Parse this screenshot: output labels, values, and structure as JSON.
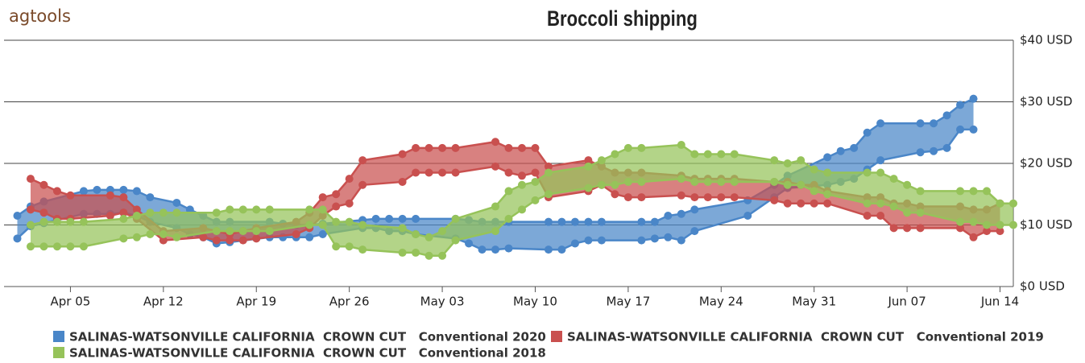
{
  "brand": "agtools",
  "chart_data": {
    "type": "arearange",
    "title": "Broccoli shipping",
    "xlim": [
      "Mar 31",
      "Jun 15"
    ],
    "xticks": [
      "Apr 05",
      "Apr 12",
      "Apr 19",
      "Apr 26",
      "May 03",
      "May 10",
      "May 17",
      "May 24",
      "May 31",
      "Jun 07",
      "Jun 14"
    ],
    "ylim": [
      0,
      40
    ],
    "yticks": [
      {
        "value": 0,
        "label": "$0 USD"
      },
      {
        "value": 10,
        "label": "$10 USD"
      },
      {
        "value": 20,
        "label": "$20 USD"
      },
      {
        "value": 30,
        "label": "$30 USD"
      },
      {
        "value": 40,
        "label": "$40 USD"
      }
    ],
    "grid": true,
    "series": [
      {
        "name": "SALINAS-WATSONVILLE CALIFORNIA  CROWN CUT   Conventional 2020",
        "color": "#4a86c8",
        "x": [
          "Apr 01",
          "Apr 02",
          "Apr 03",
          "Apr 06",
          "Apr 07",
          "Apr 08",
          "Apr 09",
          "Apr 10",
          "Apr 11",
          "Apr 13",
          "Apr 14",
          "Apr 15",
          "Apr 16",
          "Apr 17",
          "Apr 20",
          "Apr 21",
          "Apr 22",
          "Apr 23",
          "Apr 24",
          "Apr 27",
          "Apr 28",
          "Apr 29",
          "Apr 30",
          "May 01",
          "May 04",
          "May 05",
          "May 06",
          "May 07",
          "May 08",
          "May 11",
          "May 12",
          "May 13",
          "May 14",
          "May 15",
          "May 18",
          "May 19",
          "May 20",
          "May 21",
          "May 22",
          "May 26",
          "May 28",
          "May 29",
          "Jun 01",
          "Jun 02",
          "Jun 03",
          "Jun 04",
          "Jun 05",
          "Jun 08",
          "Jun 09",
          "Jun 10",
          "Jun 11",
          "Jun 12"
        ],
        "high": [
          11.5,
          13.0,
          13.8,
          15.5,
          15.7,
          15.7,
          15.7,
          15.5,
          14.5,
          13.6,
          12.5,
          11.5,
          10.5,
          10.5,
          10.5,
          10.2,
          10.0,
          10.0,
          10.2,
          10.8,
          11.0,
          11.0,
          11.0,
          11.0,
          11.0,
          10.8,
          10.5,
          10.5,
          10.5,
          10.5,
          10.5,
          10.5,
          10.5,
          10.5,
          10.5,
          10.5,
          11.5,
          11.8,
          12.5,
          14.0,
          16.5,
          18.0,
          21.0,
          22.0,
          22.5,
          25.0,
          26.5,
          26.5,
          26.5,
          27.8,
          29.5,
          30.5
        ],
        "low": [
          7.8,
          9.8,
          10.3,
          11.8,
          11.8,
          11.8,
          12.0,
          11.5,
          10.5,
          9.5,
          8.5,
          8.0,
          7.0,
          7.2,
          8.0,
          8.0,
          8.0,
          8.0,
          8.5,
          9.5,
          9.5,
          9.0,
          9.0,
          8.5,
          7.8,
          7.0,
          6.0,
          6.0,
          6.2,
          6.0,
          6.0,
          7.0,
          7.5,
          7.5,
          7.5,
          7.8,
          8.0,
          7.5,
          9.0,
          11.5,
          14.5,
          16.0,
          16.5,
          17.0,
          17.5,
          19.0,
          20.5,
          21.8,
          22.0,
          22.5,
          25.5,
          25.5
        ]
      },
      {
        "name": "SALINAS-WATSONVILLE CALIFORNIA  CROWN CUT   Conventional 2019",
        "color": "#c9504f",
        "x": [
          "Apr 02",
          "Apr 03",
          "Apr 04",
          "Apr 05",
          "Apr 08",
          "Apr 09",
          "Apr 10",
          "Apr 12",
          "Apr 15",
          "Apr 16",
          "Apr 17",
          "Apr 18",
          "Apr 19",
          "Apr 22",
          "Apr 23",
          "Apr 24",
          "Apr 25",
          "Apr 26",
          "Apr 27",
          "Apr 30",
          "May 01",
          "May 02",
          "May 03",
          "May 04",
          "May 07",
          "May 08",
          "May 09",
          "May 10",
          "May 11",
          "May 14",
          "May 15",
          "May 16",
          "May 17",
          "May 18",
          "May 21",
          "May 22",
          "May 23",
          "May 24",
          "May 25",
          "May 28",
          "May 29",
          "May 30",
          "May 31",
          "Jun 01",
          "Jun 04",
          "Jun 05",
          "Jun 06",
          "Jun 07",
          "Jun 08",
          "Jun 11",
          "Jun 12",
          "Jun 13",
          "Jun 14"
        ],
        "high": [
          17.5,
          16.5,
          15.5,
          14.8,
          14.8,
          14.5,
          12.5,
          9.0,
          9.5,
          9.0,
          8.5,
          9.0,
          9.5,
          10.5,
          12.0,
          14.5,
          15.0,
          17.5,
          20.5,
          21.5,
          22.5,
          22.5,
          22.5,
          22.5,
          23.5,
          22.5,
          22.5,
          22.5,
          19.5,
          20.5,
          19.5,
          18.5,
          18.5,
          18.5,
          18.0,
          17.5,
          17.5,
          17.5,
          17.5,
          17.0,
          17.0,
          16.5,
          16.5,
          15.5,
          14.5,
          14.5,
          13.5,
          13.5,
          13.0,
          13.0,
          12.5,
          12.5,
          13.5
        ],
        "low": [
          12.5,
          12.0,
          11.0,
          11.0,
          11.5,
          12.0,
          11.0,
          7.5,
          8.0,
          7.5,
          7.5,
          7.5,
          7.8,
          8.5,
          9.5,
          11.5,
          13.0,
          13.5,
          16.5,
          17.0,
          18.5,
          18.5,
          18.5,
          18.5,
          19.5,
          18.5,
          18.0,
          18.5,
          14.5,
          15.5,
          16.5,
          15.0,
          14.5,
          14.5,
          14.8,
          14.5,
          14.5,
          14.5,
          14.5,
          14.0,
          13.5,
          13.5,
          13.5,
          13.5,
          11.5,
          11.5,
          9.5,
          9.5,
          9.5,
          9.5,
          8.0,
          9.0,
          9.0
        ]
      },
      {
        "name": "SALINAS-WATSONVILLE CALIFORNIA  CROWN CUT   Conventional 2018",
        "color": "#96c35a",
        "x": [
          "Apr 02",
          "Apr 03",
          "Apr 04",
          "Apr 05",
          "Apr 06",
          "Apr 09",
          "Apr 10",
          "Apr 11",
          "Apr 12",
          "Apr 13",
          "Apr 16",
          "Apr 17",
          "Apr 18",
          "Apr 19",
          "Apr 20",
          "Apr 23",
          "Apr 24",
          "Apr 25",
          "Apr 26",
          "Apr 27",
          "Apr 30",
          "May 01",
          "May 02",
          "May 03",
          "May 04",
          "May 07",
          "May 08",
          "May 09",
          "May 10",
          "May 11",
          "May 14",
          "May 15",
          "May 16",
          "May 17",
          "May 18",
          "May 21",
          "May 22",
          "May 23",
          "May 24",
          "May 25",
          "May 28",
          "May 29",
          "May 30",
          "May 31",
          "Jun 01",
          "Jun 04",
          "Jun 05",
          "Jun 06",
          "Jun 07",
          "Jun 08",
          "Jun 11",
          "Jun 12",
          "Jun 13",
          "Jun 14",
          "Jun 15"
        ],
        "high": [
          10.0,
          10.5,
          10.5,
          10.5,
          10.5,
          11.0,
          11.5,
          12.0,
          12.0,
          12.0,
          12.0,
          12.5,
          12.5,
          12.5,
          12.5,
          12.5,
          12.5,
          10.5,
          10.5,
          10.0,
          9.5,
          8.5,
          8.0,
          9.0,
          11.0,
          13.0,
          15.5,
          16.5,
          17.0,
          18.5,
          19.5,
          20.5,
          21.5,
          22.5,
          22.5,
          23.0,
          21.5,
          21.5,
          21.5,
          21.5,
          20.5,
          20.0,
          20.5,
          19.0,
          18.5,
          18.5,
          18.5,
          17.5,
          16.5,
          15.5,
          15.5,
          15.5,
          15.5,
          13.5,
          13.5
        ],
        "low": [
          6.5,
          6.5,
          6.5,
          6.5,
          6.5,
          7.8,
          8.0,
          8.5,
          8.5,
          8.0,
          9.0,
          9.0,
          9.0,
          9.0,
          9.0,
          10.0,
          10.0,
          6.5,
          6.5,
          6.0,
          5.5,
          5.5,
          5.0,
          5.0,
          7.5,
          9.0,
          11.0,
          12.5,
          14.0,
          15.0,
          16.0,
          16.5,
          16.5,
          17.0,
          17.0,
          17.5,
          17.0,
          17.0,
          17.0,
          17.0,
          17.0,
          16.5,
          16.5,
          15.5,
          15.0,
          13.5,
          13.5,
          13.0,
          12.0,
          12.0,
          10.5,
          10.5,
          10.0,
          10.0,
          10.0
        ]
      }
    ]
  }
}
